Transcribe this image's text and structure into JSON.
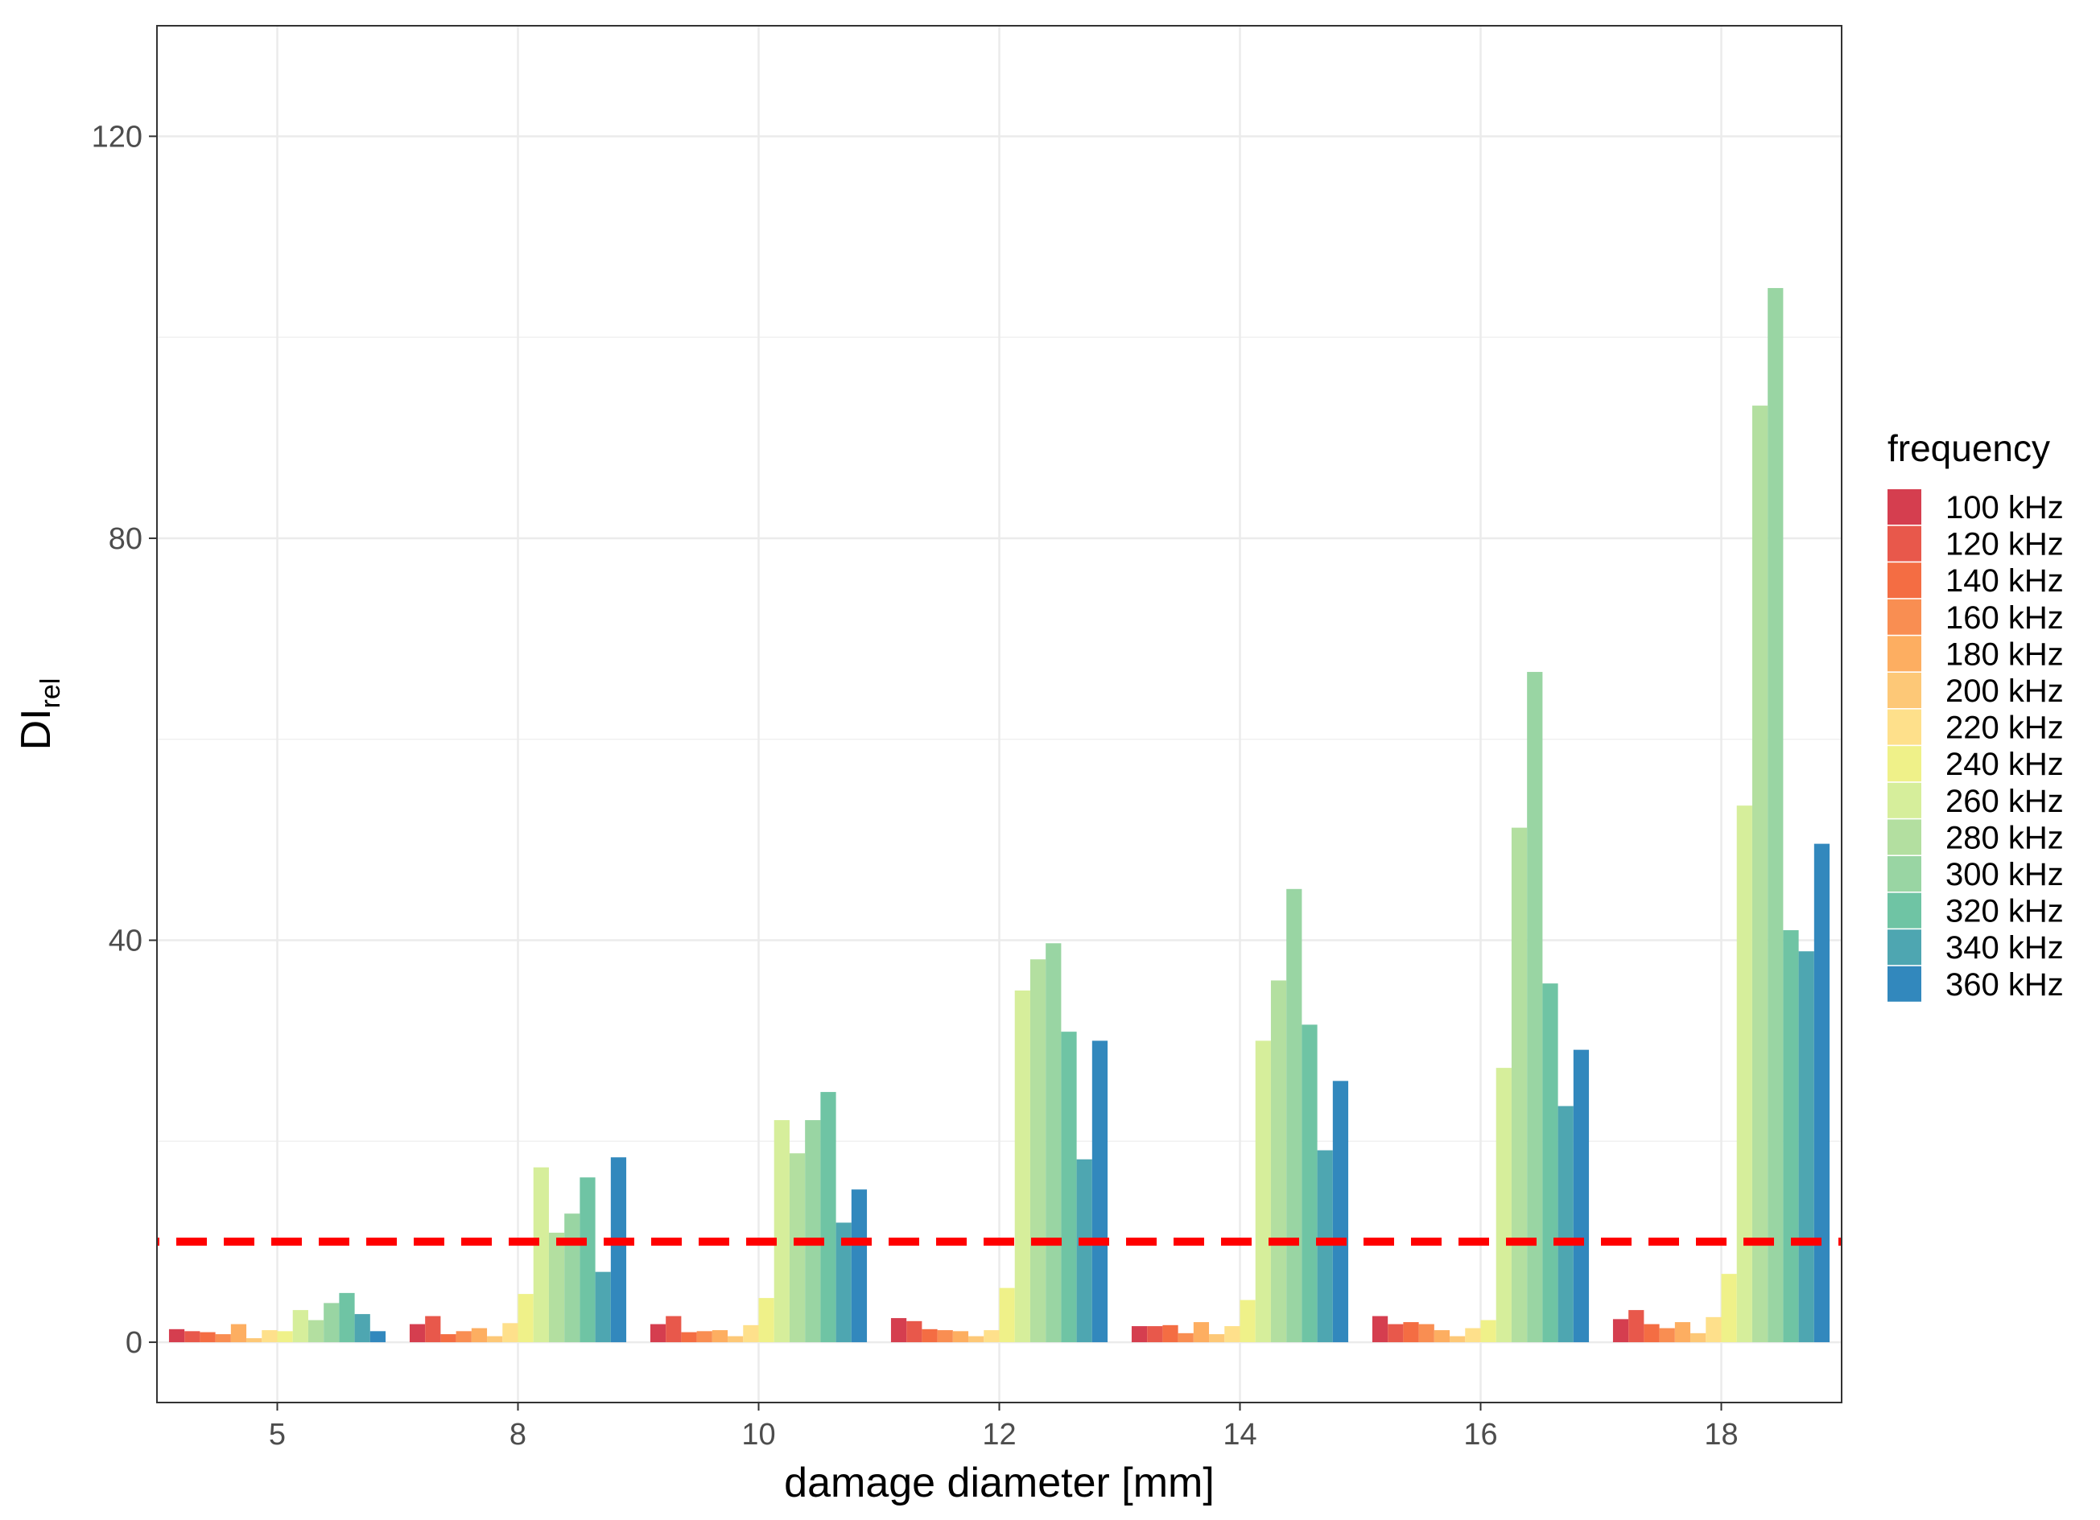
{
  "chart_data": {
    "type": "bar",
    "title": "",
    "xlabel": "damage diameter [mm]",
    "ylabel": "DI",
    "ylabel_subscript": "rel",
    "categories": [
      "5",
      "8",
      "10",
      "12",
      "14",
      "16",
      "18"
    ],
    "ylim": [
      -6,
      131
    ],
    "yticks": [
      0,
      40,
      80,
      120
    ],
    "ytick_labels": [
      "0",
      "40",
      "80",
      "120"
    ],
    "grid": true,
    "threshold_line": {
      "value": 10,
      "color": "#ff0000",
      "style": "dashed"
    },
    "legend_title": "frequency",
    "legend_position": "right",
    "series": [
      {
        "name": "100 kHz",
        "color": "#d53e4f",
        "values": [
          1.3,
          1.8,
          1.8,
          2.4,
          1.6,
          2.6,
          2.3
        ]
      },
      {
        "name": "120 kHz",
        "color": "#e8584b",
        "values": [
          1.1,
          2.6,
          2.6,
          2.1,
          1.6,
          1.8,
          3.2
        ]
      },
      {
        "name": "140 kHz",
        "color": "#f46d43",
        "values": [
          1.0,
          0.8,
          1.0,
          1.3,
          1.7,
          2.0,
          1.8
        ]
      },
      {
        "name": "160 kHz",
        "color": "#f98e52",
        "values": [
          0.8,
          1.1,
          1.1,
          1.2,
          0.9,
          1.8,
          1.4
        ]
      },
      {
        "name": "180 kHz",
        "color": "#fdae61",
        "values": [
          1.8,
          1.4,
          1.2,
          1.1,
          2.0,
          1.2,
          2.0
        ]
      },
      {
        "name": "200 kHz",
        "color": "#fdc877",
        "values": [
          0.4,
          0.6,
          0.6,
          0.6,
          0.8,
          0.6,
          0.9
        ]
      },
      {
        "name": "220 kHz",
        "color": "#fee08b",
        "values": [
          1.2,
          1.9,
          1.7,
          1.2,
          1.6,
          1.4,
          2.5
        ]
      },
      {
        "name": "240 kHz",
        "color": "#eff189",
        "values": [
          1.1,
          4.8,
          4.4,
          5.4,
          4.2,
          2.2,
          6.8
        ]
      },
      {
        "name": "260 kHz",
        "color": "#d6ee9b",
        "values": [
          3.2,
          17.4,
          22.1,
          35.0,
          30.0,
          27.3,
          53.4
        ]
      },
      {
        "name": "280 kHz",
        "color": "#b3dfa0",
        "values": [
          2.2,
          10.9,
          18.8,
          38.1,
          36.0,
          51.2,
          93.2
        ]
      },
      {
        "name": "300 kHz",
        "color": "#99d5a3",
        "values": [
          3.9,
          12.8,
          22.1,
          39.7,
          45.1,
          66.7,
          104.9
        ]
      },
      {
        "name": "320 kHz",
        "color": "#6fc4a4",
        "values": [
          4.9,
          16.4,
          24.9,
          30.9,
          31.6,
          35.7,
          41.0
        ]
      },
      {
        "name": "340 kHz",
        "color": "#4ea6b1",
        "values": [
          2.8,
          7.0,
          11.9,
          18.2,
          19.1,
          23.5,
          38.9
        ]
      },
      {
        "name": "360 kHz",
        "color": "#3288bd",
        "values": [
          1.1,
          18.4,
          15.2,
          30.0,
          26.0,
          29.1,
          49.6
        ]
      }
    ]
  }
}
